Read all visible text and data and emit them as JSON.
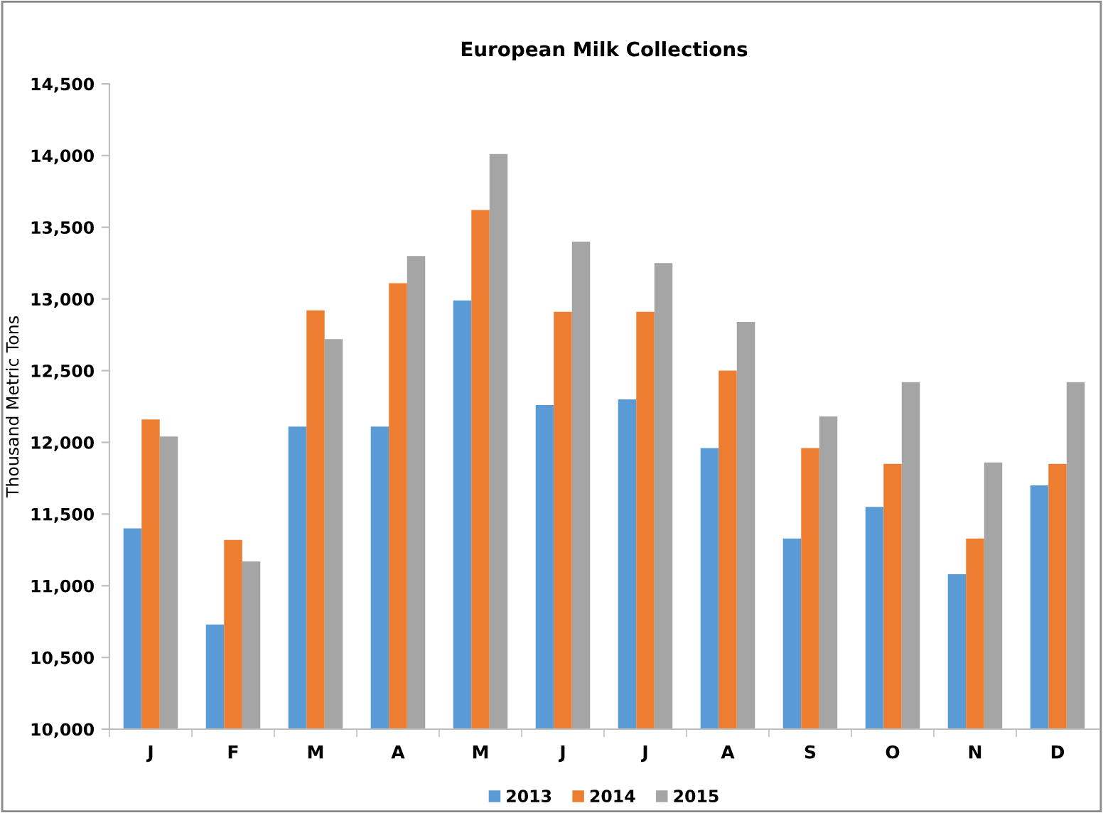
{
  "chart_data": {
    "type": "bar",
    "title": "European Milk Collections",
    "ylabel": "Thousand Metric Tons",
    "categories": [
      "J",
      "F",
      "M",
      "A",
      "M",
      "J",
      "J",
      "A",
      "S",
      "O",
      "N",
      "D"
    ],
    "series": [
      {
        "name": "2013",
        "color": "#5b9bd5",
        "values": [
          11400,
          10730,
          12110,
          12110,
          12990,
          12260,
          12300,
          11960,
          11330,
          11550,
          11080,
          11700
        ]
      },
      {
        "name": "2014",
        "color": "#ed7d31",
        "values": [
          12160,
          11320,
          12920,
          13110,
          13620,
          12910,
          12910,
          12500,
          11960,
          11850,
          11330,
          11850
        ]
      },
      {
        "name": "2015",
        "color": "#a5a5a5",
        "values": [
          12040,
          11170,
          12720,
          13300,
          14010,
          13400,
          13250,
          12840,
          12180,
          12420,
          11860,
          12420
        ]
      }
    ],
    "ylim": [
      10000,
      14500
    ],
    "yticks": [
      {
        "value": 10000,
        "label": "10,000"
      },
      {
        "value": 10500,
        "label": "10,500"
      },
      {
        "value": 11000,
        "label": "11,000"
      },
      {
        "value": 11500,
        "label": "11,500"
      },
      {
        "value": 12000,
        "label": "12,000"
      },
      {
        "value": 12500,
        "label": "12,500"
      },
      {
        "value": 13000,
        "label": "13,000"
      },
      {
        "value": 13500,
        "label": "13,500"
      },
      {
        "value": 14000,
        "label": "14,000"
      },
      {
        "value": 14500,
        "label": "14,500"
      }
    ],
    "legend": "bottom",
    "grid": false
  }
}
